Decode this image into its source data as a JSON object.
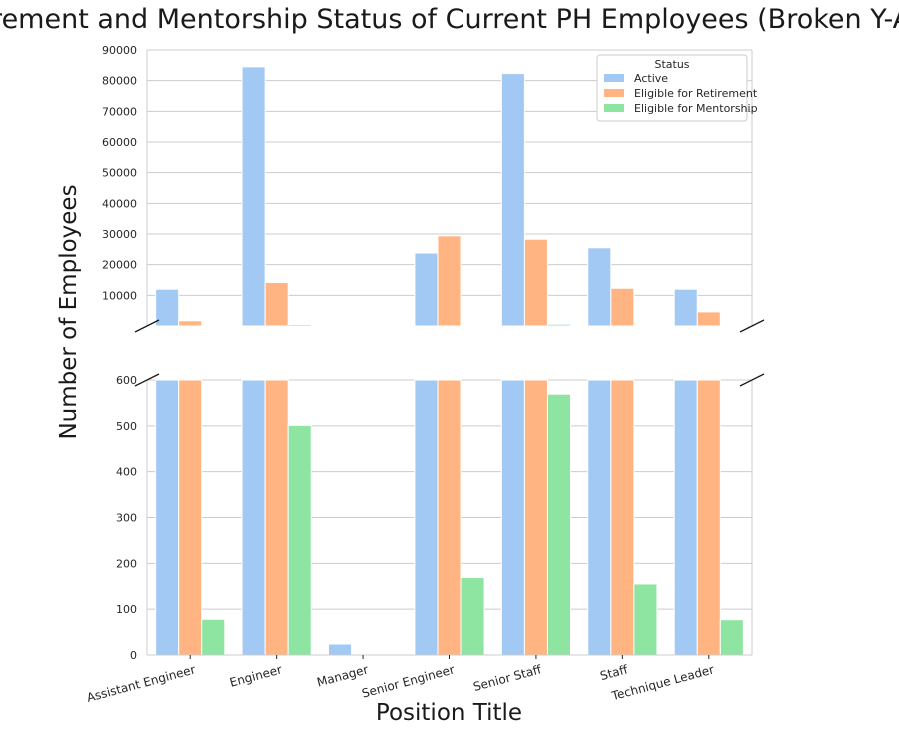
{
  "chart_data": {
    "type": "bar",
    "title": "Retirement and Mentorship Status of Current PH Employees (Broken Y-Axis)",
    "xlabel": "Position Title",
    "ylabel": "Number of Employees",
    "categories": [
      "Assistant Engineer",
      "Engineer",
      "Manager",
      "Senior Engineer",
      "Senior Staff",
      "Staff",
      "Technique Leader"
    ],
    "series": [
      {
        "name": "Active",
        "color": "#a1c9f4",
        "values": [
          12000,
          84500,
          24,
          23800,
          82300,
          25500,
          12000
        ]
      },
      {
        "name": "Eligible for Retirement",
        "color": "#ffb482",
        "values": [
          1700,
          14200,
          0,
          29400,
          28300,
          12300,
          4600
        ]
      },
      {
        "name": "Eligible for Mentorship",
        "color": "#8de5a1",
        "values": [
          78,
          501,
          0,
          169,
          569,
          155,
          77
        ]
      }
    ],
    "legend": {
      "title": "Status",
      "placement": "top-right"
    },
    "axes_upper": {
      "ylim": [
        0,
        90000
      ],
      "ticks": [
        10000,
        20000,
        30000,
        40000,
        50000,
        60000,
        70000,
        80000,
        90000
      ]
    },
    "axes_lower": {
      "ylim": [
        0,
        600
      ],
      "ticks": [
        0,
        100,
        200,
        300,
        400,
        500,
        600
      ]
    },
    "grid": true,
    "broken_y_axis": true
  }
}
